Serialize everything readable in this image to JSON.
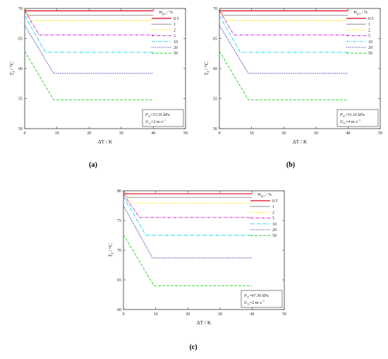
{
  "charts": [
    {
      "id": "a",
      "panel_label": "(a)",
      "xlabel": "ΔT / K",
      "ylabel": "T_f / °C",
      "ylabel_main": "T",
      "ylabel_sub": "f",
      "ylabel_unit": " / °C",
      "annot1_main": "P",
      "annot1_sub": "vs",
      "annot1_rest": "=31.16 kPa",
      "annot2_main": "U",
      "annot2_sub": "vs",
      "annot2_rest": "=2 m·s",
      "annot2_sup": "−1",
      "xlim": [
        0,
        50
      ],
      "ylim": [
        50,
        70
      ],
      "xticks": [
        "0",
        "10",
        "20",
        "30",
        "40",
        "50"
      ],
      "yticks": [
        "50",
        "55",
        "60",
        "65",
        "70"
      ],
      "legend_title_main": "W",
      "legend_title_sub": "gcs",
      "legend_title_rest": " / %",
      "chart_data": {
        "type": "line",
        "title": "",
        "xlabel": "ΔT / K",
        "ylabel": "T_f / °C",
        "xlim": [
          0,
          50
        ],
        "ylim": [
          50,
          70
        ],
        "series": [
          {
            "name": "0.5",
            "color": "#e3001b",
            "dash": "",
            "width": 1.2,
            "points": [
              [
                0,
                70.0
              ],
              [
                0.3,
                69.6
              ],
              [
                40,
                69.6
              ]
            ]
          },
          {
            "name": "1",
            "color": "#222222",
            "dash": "1.2,0.8",
            "width": 0.8,
            "points": [
              [
                0,
                70.0
              ],
              [
                1.0,
                68.9
              ],
              [
                40,
                68.9
              ]
            ]
          },
          {
            "name": "2",
            "color": "#ffe600",
            "dash": "2,1.5",
            "width": 0.9,
            "points": [
              [
                0,
                70.0
              ],
              [
                2.0,
                68.0
              ],
              [
                40,
                68.0
              ]
            ]
          },
          {
            "name": "5",
            "color": "#d000d0",
            "dash": "4,1.5,1,1.5",
            "width": 0.9,
            "points": [
              [
                0,
                69.6
              ],
              [
                4.5,
                65.6
              ],
              [
                40,
                65.6
              ]
            ]
          },
          {
            "name": "10",
            "color": "#00d4e6",
            "dash": "5,1.5,1,1.5",
            "width": 0.9,
            "points": [
              [
                0,
                68.8
              ],
              [
                6.5,
                62.7
              ],
              [
                40,
                62.7
              ]
            ]
          },
          {
            "name": "20",
            "color": "#1010a0",
            "dash": "1,1.6",
            "width": 1.1,
            "points": [
              [
                0,
                67.2
              ],
              [
                9.0,
                59.2
              ],
              [
                40,
                59.2
              ]
            ]
          },
          {
            "name": "50",
            "color": "#2bd42b",
            "dash": "4,2",
            "width": 1.0,
            "points": [
              [
                0,
                62.9
              ],
              [
                9.0,
                54.8
              ],
              [
                40,
                54.8
              ]
            ]
          }
        ]
      }
    },
    {
      "id": "b",
      "panel_label": "(b)",
      "xlabel": "ΔT / K",
      "ylabel": "T_f / °C",
      "ylabel_main": "T",
      "ylabel_sub": "f",
      "ylabel_unit": " / °C",
      "annot1_main": "P",
      "annot1_sub": "vs",
      "annot1_rest": "=31.16 kPa",
      "annot2_main": "U",
      "annot2_sub": "vs",
      "annot2_rest": "=4 m·s",
      "annot2_sup": "−1",
      "xlim": [
        0,
        50
      ],
      "ylim": [
        50,
        70
      ],
      "xticks": [
        "0",
        "10",
        "20",
        "30",
        "40",
        "50"
      ],
      "yticks": [
        "50",
        "55",
        "60",
        "65",
        "70"
      ],
      "legend_title_main": "W",
      "legend_title_sub": "gcs",
      "legend_title_rest": " / %",
      "chart_data": {
        "type": "line",
        "title": "",
        "xlabel": "ΔT / K",
        "ylabel": "T_f / °C",
        "xlim": [
          0,
          50
        ],
        "ylim": [
          50,
          70
        ],
        "series": [
          {
            "name": "0.5",
            "color": "#e3001b",
            "dash": "",
            "width": 1.2,
            "points": [
              [
                0,
                70.0
              ],
              [
                0.3,
                69.6
              ],
              [
                40,
                69.6
              ]
            ]
          },
          {
            "name": "1",
            "color": "#222222",
            "dash": "1.2,0.8",
            "width": 0.8,
            "points": [
              [
                0,
                70.0
              ],
              [
                1.0,
                68.9
              ],
              [
                40,
                68.9
              ]
            ]
          },
          {
            "name": "2",
            "color": "#ffe600",
            "dash": "2,1.5",
            "width": 0.9,
            "points": [
              [
                0,
                70.0
              ],
              [
                2.0,
                68.0
              ],
              [
                40,
                68.0
              ]
            ]
          },
          {
            "name": "5",
            "color": "#d000d0",
            "dash": "4,1.5,1,1.5",
            "width": 0.9,
            "points": [
              [
                0,
                69.6
              ],
              [
                4.5,
                65.6
              ],
              [
                40,
                65.6
              ]
            ]
          },
          {
            "name": "10",
            "color": "#00d4e6",
            "dash": "5,1.5,1,1.5",
            "width": 0.9,
            "points": [
              [
                0,
                68.8
              ],
              [
                6.5,
                62.7
              ],
              [
                40,
                62.7
              ]
            ]
          },
          {
            "name": "20",
            "color": "#1010a0",
            "dash": "1,1.6",
            "width": 1.1,
            "points": [
              [
                0,
                67.2
              ],
              [
                9.0,
                59.2
              ],
              [
                40,
                59.2
              ]
            ]
          },
          {
            "name": "50",
            "color": "#2bd42b",
            "dash": "4,2",
            "width": 1.0,
            "points": [
              [
                0,
                62.9
              ],
              [
                9.0,
                54.8
              ],
              [
                40,
                54.8
              ]
            ]
          }
        ]
      }
    },
    {
      "id": "c",
      "panel_label": "(c)",
      "xlabel": "ΔT / K",
      "ylabel": "T_f / °C",
      "ylabel_main": "T",
      "ylabel_sub": "f",
      "ylabel_unit": " / °C",
      "annot1_main": "P",
      "annot1_sub": "vs",
      "annot1_rest": "=47.36 kPa",
      "annot2_main": "U",
      "annot2_sub": "vs",
      "annot2_rest": "=2 m·s",
      "annot2_sup": "−1",
      "xlim": [
        0,
        50
      ],
      "ylim": [
        60,
        80
      ],
      "xticks": [
        "0",
        "10",
        "20",
        "30",
        "40",
        "50"
      ],
      "yticks": [
        "60",
        "65",
        "70",
        "75",
        "80"
      ],
      "legend_title_main": "W",
      "legend_title_sub": "gcs",
      "legend_title_rest": " / %",
      "chart_data": {
        "type": "line",
        "title": "",
        "xlabel": "ΔT / K",
        "ylabel": "T_f / °C",
        "xlim": [
          0,
          50
        ],
        "ylim": [
          60,
          80
        ],
        "series": [
          {
            "name": "0.5",
            "color": "#e3001b",
            "dash": "",
            "width": 1.2,
            "points": [
              [
                0,
                80.0
              ],
              [
                0.3,
                79.5
              ],
              [
                40,
                79.5
              ]
            ]
          },
          {
            "name": "1",
            "color": "#222222",
            "dash": "1.2,0.8",
            "width": 0.8,
            "points": [
              [
                0,
                80.0
              ],
              [
                1.2,
                78.9
              ],
              [
                40,
                78.9
              ]
            ]
          },
          {
            "name": "2",
            "color": "#ffe600",
            "dash": "2,1.5",
            "width": 0.9,
            "points": [
              [
                0,
                79.8
              ],
              [
                2.5,
                77.9
              ],
              [
                40,
                77.9
              ]
            ]
          },
          {
            "name": "5",
            "color": "#d000d0",
            "dash": "4,1.5,1,1.5",
            "width": 0.9,
            "points": [
              [
                0,
                79.4
              ],
              [
                5.0,
                75.5
              ],
              [
                40,
                75.5
              ]
            ]
          },
          {
            "name": "10",
            "color": "#00d4e6",
            "dash": "5,1.5,1,1.5",
            "width": 0.9,
            "points": [
              [
                0,
                79.0
              ],
              [
                7.0,
                72.5
              ],
              [
                40,
                72.5
              ]
            ]
          },
          {
            "name": "20",
            "color": "#1010a0",
            "dash": "1,1.6",
            "width": 1.1,
            "points": [
              [
                0,
                77.5
              ],
              [
                9.0,
                68.7
              ],
              [
                40,
                68.7
              ]
            ]
          },
          {
            "name": "50",
            "color": "#2bd42b",
            "dash": "4,2",
            "width": 1.0,
            "points": [
              [
                0,
                72.6
              ],
              [
                9.5,
                64.0
              ],
              [
                40,
                64.0
              ]
            ]
          }
        ]
      }
    }
  ]
}
